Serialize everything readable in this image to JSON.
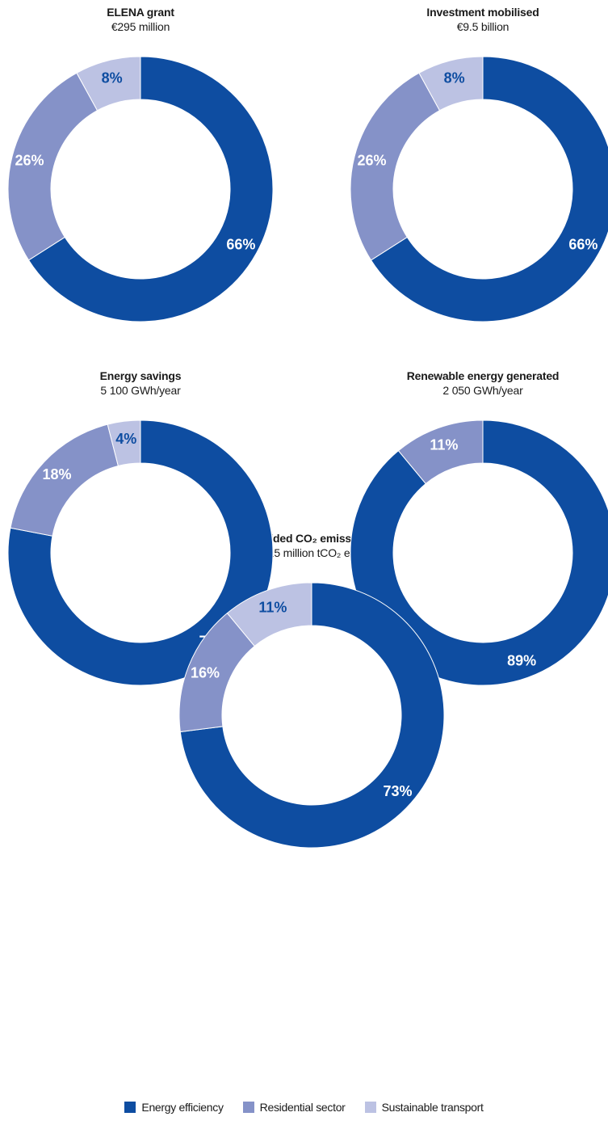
{
  "colors": {
    "energy_efficiency": "#0e4da1",
    "residential_sector": "#8592c8",
    "sustainable_transport": "#bcc2e3"
  },
  "chart_data": [
    {
      "type": "pie",
      "title": "ELENA grant",
      "subtitle": "€295 million",
      "categories": [
        "Energy efficiency",
        "Residential sector",
        "Sustainable transport"
      ],
      "values": [
        66,
        26,
        8
      ],
      "labels": [
        "66%",
        "26%",
        "8%"
      ]
    },
    {
      "type": "pie",
      "title": "Investment mobilised",
      "subtitle": "€9.5 billion",
      "categories": [
        "Energy efficiency",
        "Residential sector",
        "Sustainable transport"
      ],
      "values": [
        66,
        26,
        8
      ],
      "labels": [
        "66%",
        "26%",
        "8%"
      ]
    },
    {
      "type": "pie",
      "title": "Energy savings",
      "subtitle": "5 100 GWh/year",
      "categories": [
        "Energy efficiency",
        "Residential sector",
        "Sustainable transport"
      ],
      "values": [
        78,
        18,
        4
      ],
      "labels": [
        "78%",
        "18%",
        "4%"
      ]
    },
    {
      "type": "pie",
      "title": "Renewable energy generated",
      "subtitle": "2 050 GWh/year",
      "categories": [
        "Energy efficiency",
        "Residential sector"
      ],
      "values": [
        89,
        11
      ],
      "labels": [
        "89%",
        "11%"
      ]
    },
    {
      "type": "pie",
      "title": "Avoided CO₂ emissions",
      "subtitle": "2.15 million tCO₂ eq/y",
      "categories": [
        "Energy efficiency",
        "Residential sector",
        "Sustainable transport"
      ],
      "values": [
        73,
        16,
        11
      ],
      "labels": [
        "73%",
        "16%",
        "11%"
      ]
    }
  ],
  "legend": {
    "items": [
      "Energy efficiency",
      "Residential sector",
      "Sustainable transport"
    ]
  }
}
